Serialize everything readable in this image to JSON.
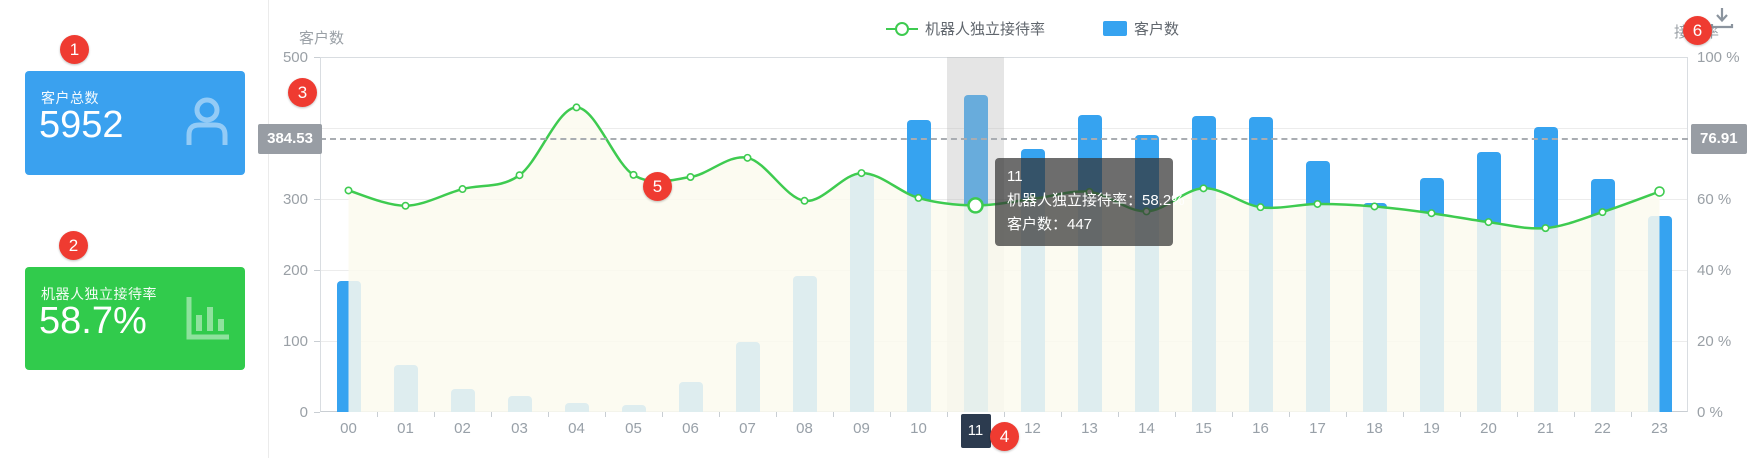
{
  "cards": {
    "total_customers": {
      "label": "客户总数",
      "value": "5952",
      "icon": "user-icon",
      "color": "#3aa1ef"
    },
    "robot_rate": {
      "label": "机器人独立接待率",
      "value": "58.7%",
      "icon": "bar-chart-icon",
      "color": "#31cb4c"
    }
  },
  "toolbar": {
    "download_icon": "download-icon"
  },
  "legend": {
    "line_item": "机器人独立接待率",
    "bar_item": "客户数"
  },
  "axes": {
    "left_name": "客户数",
    "right_name": "接待率",
    "left_ticks": [
      500,
      300,
      200,
      100,
      0
    ],
    "right_ticks": [
      100,
      60,
      40,
      20,
      0
    ],
    "right_tick_suffix": " %",
    "left_mark_label": "384.53",
    "right_mark_label": "76.91"
  },
  "tooltip": {
    "title": "11",
    "line1": "机器人独立接待率：58.2%",
    "line2": "客户数：447"
  },
  "annotations": {
    "badges": [
      "1",
      "2",
      "3",
      "4",
      "5",
      "6"
    ]
  },
  "colors": {
    "bar": "#36a3f0",
    "line": "#3ecb50",
    "area_fill": "#fbfaee",
    "badge_red": "#ef3b31",
    "selected_label_bg": "#2c3b4f",
    "mark_label_bg": "#989da4"
  },
  "chart_data": {
    "type": "bar+line",
    "categories": [
      "00",
      "01",
      "02",
      "03",
      "04",
      "05",
      "06",
      "07",
      "08",
      "09",
      "10",
      "11",
      "12",
      "13",
      "14",
      "15",
      "16",
      "17",
      "18",
      "19",
      "20",
      "21",
      "22",
      "23"
    ],
    "series": [
      {
        "name": "客户数",
        "type": "bar",
        "axis": "left",
        "color": "#36a3f0",
        "values": [
          185,
          66,
          32,
          22,
          12,
          10,
          42,
          98,
          192,
          334,
          411,
          447,
          370,
          418,
          390,
          417,
          415,
          354,
          295,
          330,
          366,
          402,
          328,
          276
        ]
      },
      {
        "name": "机器人独立接待率",
        "type": "line",
        "axis": "right",
        "unit": "%",
        "color": "#3ecb50",
        "values": [
          62.4,
          58.1,
          62.8,
          66.7,
          85.8,
          66.8,
          66.2,
          71.6,
          59.5,
          67.3,
          60.3,
          58.2,
          60.0,
          62.0,
          56.5,
          63.0,
          57.7,
          58.6,
          57.9,
          56.0,
          53.5,
          51.8,
          56.3,
          62.1
        ]
      }
    ],
    "left_ylim": [
      0,
      500
    ],
    "right_ylim": [
      0,
      100
    ],
    "marklines": {
      "left_value": 384.53,
      "right_value": 76.91
    },
    "highlighted_category": "11",
    "highlighted_index": 11,
    "legend_position": "top-center",
    "grid": true
  }
}
